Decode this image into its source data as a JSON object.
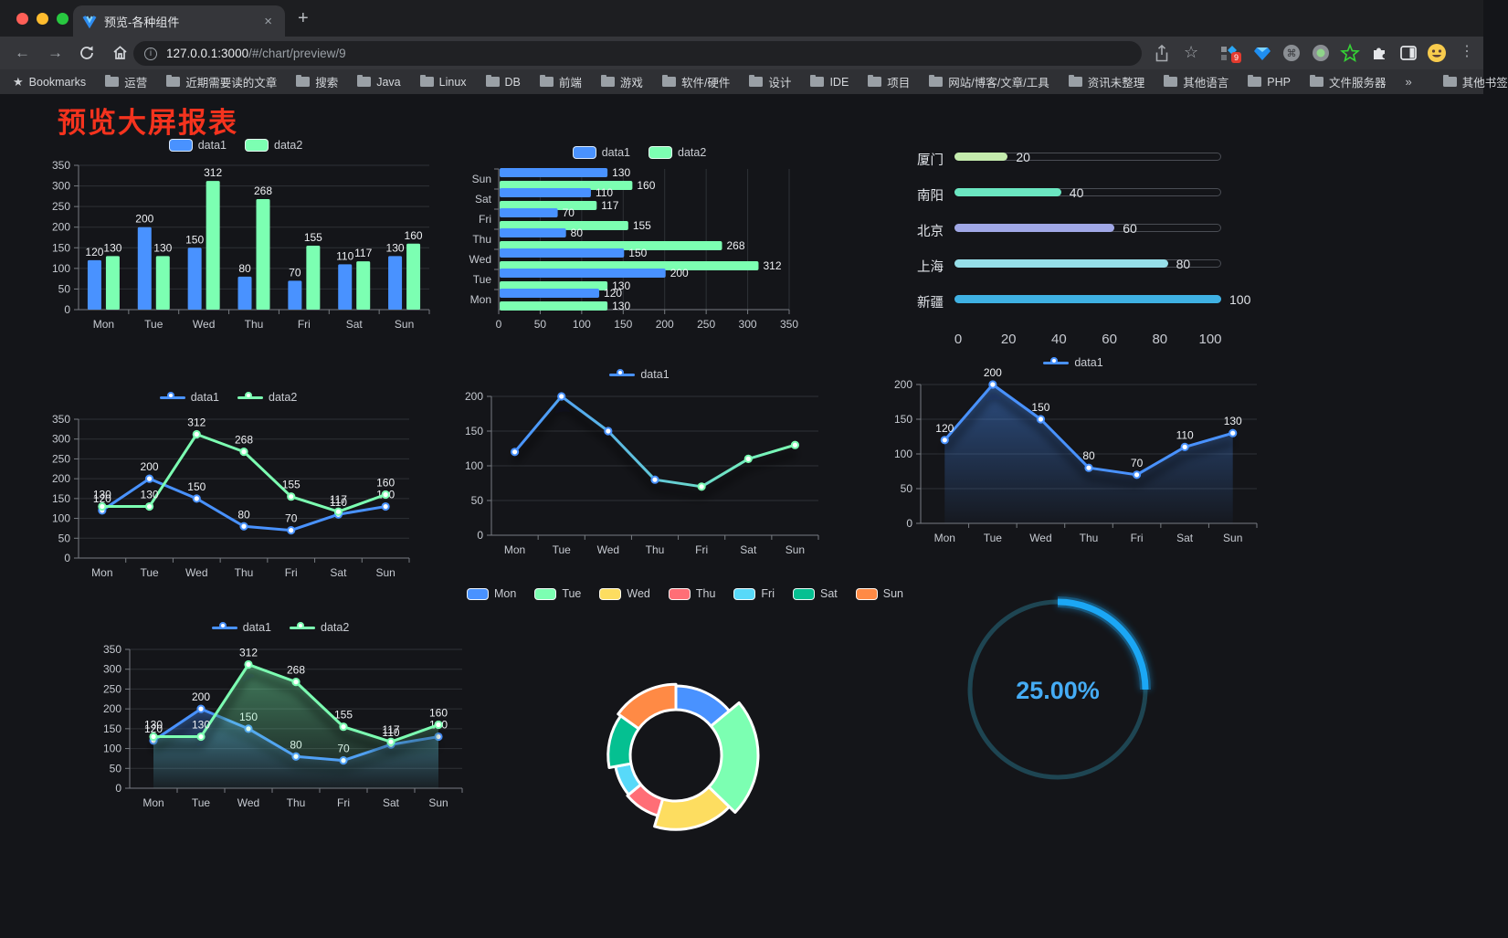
{
  "browser": {
    "tab": {
      "title": "预览-各种组件",
      "close_icon": "×",
      "new_tab_icon": "+"
    },
    "address": {
      "host": "127.0.0.1:3000",
      "path": "/#/chart/preview/9"
    },
    "bookmarks_bar": {
      "bookmarks_label": "Bookmarks",
      "folders": [
        "运营",
        "近期需要读的文章",
        "搜索",
        "Java",
        "Linux",
        "DB",
        "前端",
        "游戏",
        "软件/硬件",
        "设计",
        "IDE",
        "项目",
        "网站/博客/文章/工具",
        "资讯未整理",
        "其他语言",
        "PHP",
        "文件服务器"
      ],
      "overflow": "»",
      "other_bookmarks": "其他书签"
    },
    "extensions_badge": "9"
  },
  "page": {
    "title": "预览大屏报表",
    "title_color": "#f5331e",
    "background": "#141519"
  },
  "chart_data": [
    {
      "type": "bar",
      "orientation": "vertical",
      "categories": [
        "Mon",
        "Tue",
        "Wed",
        "Thu",
        "Fri",
        "Sat",
        "Sun"
      ],
      "series": [
        {
          "name": "data1",
          "color": "#4992ff",
          "values": [
            120,
            200,
            150,
            80,
            70,
            110,
            130
          ]
        },
        {
          "name": "data2",
          "color": "#7cffb2",
          "values": [
            130,
            130,
            312,
            268,
            155,
            117,
            160
          ]
        }
      ],
      "ylim": [
        0,
        350
      ],
      "yticks": [
        0,
        50,
        100,
        150,
        200,
        250,
        300,
        350
      ],
      "legend_position": "top",
      "grid": true,
      "labels": true
    },
    {
      "type": "bar",
      "orientation": "horizontal",
      "category_order": "reversed-top",
      "categories": [
        "Mon",
        "Tue",
        "Wed",
        "Thu",
        "Fri",
        "Sat",
        "Sun"
      ],
      "series": [
        {
          "name": "data1",
          "color": "#4992ff",
          "values": [
            120,
            200,
            150,
            80,
            70,
            110,
            130
          ]
        },
        {
          "name": "data2",
          "color": "#7cffb2",
          "values": [
            130,
            130,
            312,
            268,
            155,
            117,
            160
          ]
        }
      ],
      "xlim": [
        0,
        350
      ],
      "xticks": [
        0,
        50,
        100,
        150,
        200,
        250,
        300,
        350
      ],
      "legend_position": "top",
      "grid": true,
      "labels": true
    },
    {
      "type": "bar",
      "orientation": "progress",
      "items": [
        {
          "label": "厦门",
          "value": 20,
          "color": "#c4ebad"
        },
        {
          "label": "南阳",
          "value": 40,
          "color": "#6be6c1"
        },
        {
          "label": "北京",
          "value": 60,
          "color": "#a0a7e6"
        },
        {
          "label": "上海",
          "value": 80,
          "color": "#96dee8"
        },
        {
          "label": "新疆",
          "value": 100,
          "color": "#3fb1e3"
        }
      ],
      "xlim": [
        0,
        100
      ],
      "xticks": [
        0,
        20,
        40,
        60,
        80,
        100
      ]
    },
    {
      "type": "line",
      "categories": [
        "Mon",
        "Tue",
        "Wed",
        "Thu",
        "Fri",
        "Sat",
        "Sun"
      ],
      "series": [
        {
          "name": "data1",
          "color": "#4992ff",
          "values": [
            120,
            200,
            150,
            80,
            70,
            110,
            130
          ]
        },
        {
          "name": "data2",
          "color": "#7cffb2",
          "values": [
            130,
            130,
            312,
            268,
            155,
            117,
            160
          ]
        }
      ],
      "ylim": [
        0,
        350
      ],
      "yticks": [
        0,
        50,
        100,
        150,
        200,
        250,
        300,
        350
      ],
      "legend_position": "top",
      "grid": true,
      "labels": true,
      "markers": true
    },
    {
      "type": "line",
      "categories": [
        "Mon",
        "Tue",
        "Wed",
        "Thu",
        "Fri",
        "Sat",
        "Sun"
      ],
      "series": [
        {
          "name": "data1",
          "gradient": [
            "#4992ff",
            "#7cffb2"
          ],
          "color": "#4992ff",
          "values": [
            120,
            200,
            150,
            80,
            70,
            110,
            130
          ]
        }
      ],
      "ylim": [
        0,
        200
      ],
      "yticks": [
        0,
        50,
        100,
        150,
        200
      ],
      "legend_position": "top",
      "grid": true,
      "labels": false,
      "markers": true
    },
    {
      "type": "area",
      "categories": [
        "Mon",
        "Tue",
        "Wed",
        "Thu",
        "Fri",
        "Sat",
        "Sun"
      ],
      "series": [
        {
          "name": "data1",
          "color": "#4992ff",
          "area": true,
          "values": [
            120,
            200,
            150,
            80,
            70,
            110,
            130
          ]
        }
      ],
      "ylim": [
        0,
        200
      ],
      "yticks": [
        0,
        50,
        100,
        150,
        200
      ],
      "legend_position": "top",
      "grid": true,
      "labels": true,
      "markers": true
    },
    {
      "type": "area",
      "categories": [
        "Mon",
        "Tue",
        "Wed",
        "Thu",
        "Fri",
        "Sat",
        "Sun"
      ],
      "series": [
        {
          "name": "data1",
          "color": "#4992ff",
          "area": true,
          "values": [
            120,
            200,
            150,
            80,
            70,
            110,
            130
          ]
        },
        {
          "name": "data2",
          "color": "#7cffb2",
          "area": true,
          "values": [
            130,
            130,
            312,
            268,
            155,
            117,
            160
          ]
        }
      ],
      "ylim": [
        0,
        350
      ],
      "yticks": [
        0,
        50,
        100,
        150,
        200,
        250,
        300,
        350
      ],
      "legend_position": "top",
      "grid": true,
      "labels": true,
      "markers": true
    },
    {
      "type": "pie",
      "style": "rose-donut",
      "slices": [
        {
          "label": "Mon",
          "value": 120,
          "color": "#4992ff"
        },
        {
          "label": "Tue",
          "value": 200,
          "color": "#7cffb2"
        },
        {
          "label": "Wed",
          "value": 150,
          "color": "#fddd60"
        },
        {
          "label": "Thu",
          "value": 80,
          "color": "#ff6e76"
        },
        {
          "label": "Fri",
          "value": 70,
          "color": "#58d9f9"
        },
        {
          "label": "Sat",
          "value": 110,
          "color": "#05c091"
        },
        {
          "label": "Sun",
          "value": 130,
          "color": "#ff8a45"
        }
      ],
      "legend_position": "top"
    },
    {
      "type": "gauge",
      "value": 25,
      "max": 100,
      "display": "25.00%",
      "color": "#1ba7f5",
      "track_color": "#1e4552",
      "text_color": "#45acf5"
    }
  ]
}
